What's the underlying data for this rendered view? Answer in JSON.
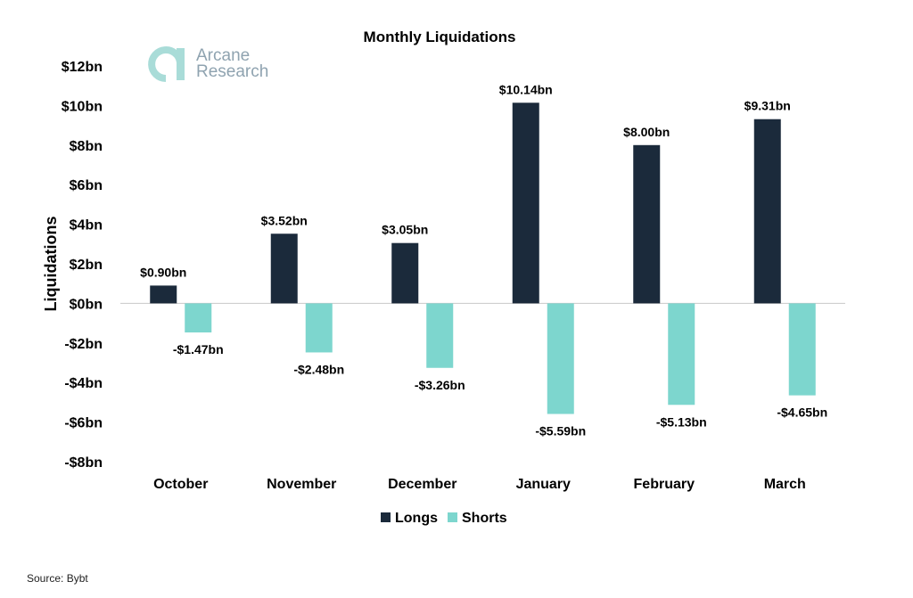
{
  "chart_data": {
    "type": "bar",
    "title": "Monthly Liquidations",
    "ylabel": "Liquidations",
    "xlabel": "",
    "categories": [
      "October",
      "November",
      "December",
      "January",
      "February",
      "March"
    ],
    "series": [
      {
        "name": "Longs",
        "color": "#1b2a3b",
        "values": [
          0.9,
          3.52,
          3.05,
          10.14,
          8.0,
          9.31
        ],
        "labels": [
          "$0.90bn",
          "$3.52bn",
          "$3.05bn",
          "$10.14bn",
          "$8.00bn",
          "$9.31bn"
        ]
      },
      {
        "name": "Shorts",
        "color": "#7dd6ce",
        "values": [
          -1.47,
          -2.48,
          -3.26,
          -5.59,
          -5.13,
          -4.65
        ],
        "labels": [
          "-$1.47bn",
          "-$2.48bn",
          "-$3.26bn",
          "-$5.59bn",
          "-$5.13bn",
          "-$4.65bn"
        ]
      }
    ],
    "ylim": [
      -8,
      12
    ],
    "yticks": [
      12,
      10,
      8,
      6,
      4,
      2,
      0,
      -2,
      -4,
      -6,
      -8
    ],
    "ytick_labels": [
      "$12bn",
      "$10bn",
      "$8bn",
      "$6bn",
      "$4bn",
      "$2bn",
      "$0bn",
      "-$2bn",
      "-$4bn",
      "-$6bn",
      "-$8bn"
    ],
    "grid": false,
    "legend_position": "bottom"
  },
  "logo": {
    "line1": "Arcane",
    "line2": "Research",
    "color": "#a9dcd8"
  },
  "source": "Source: Bybt"
}
